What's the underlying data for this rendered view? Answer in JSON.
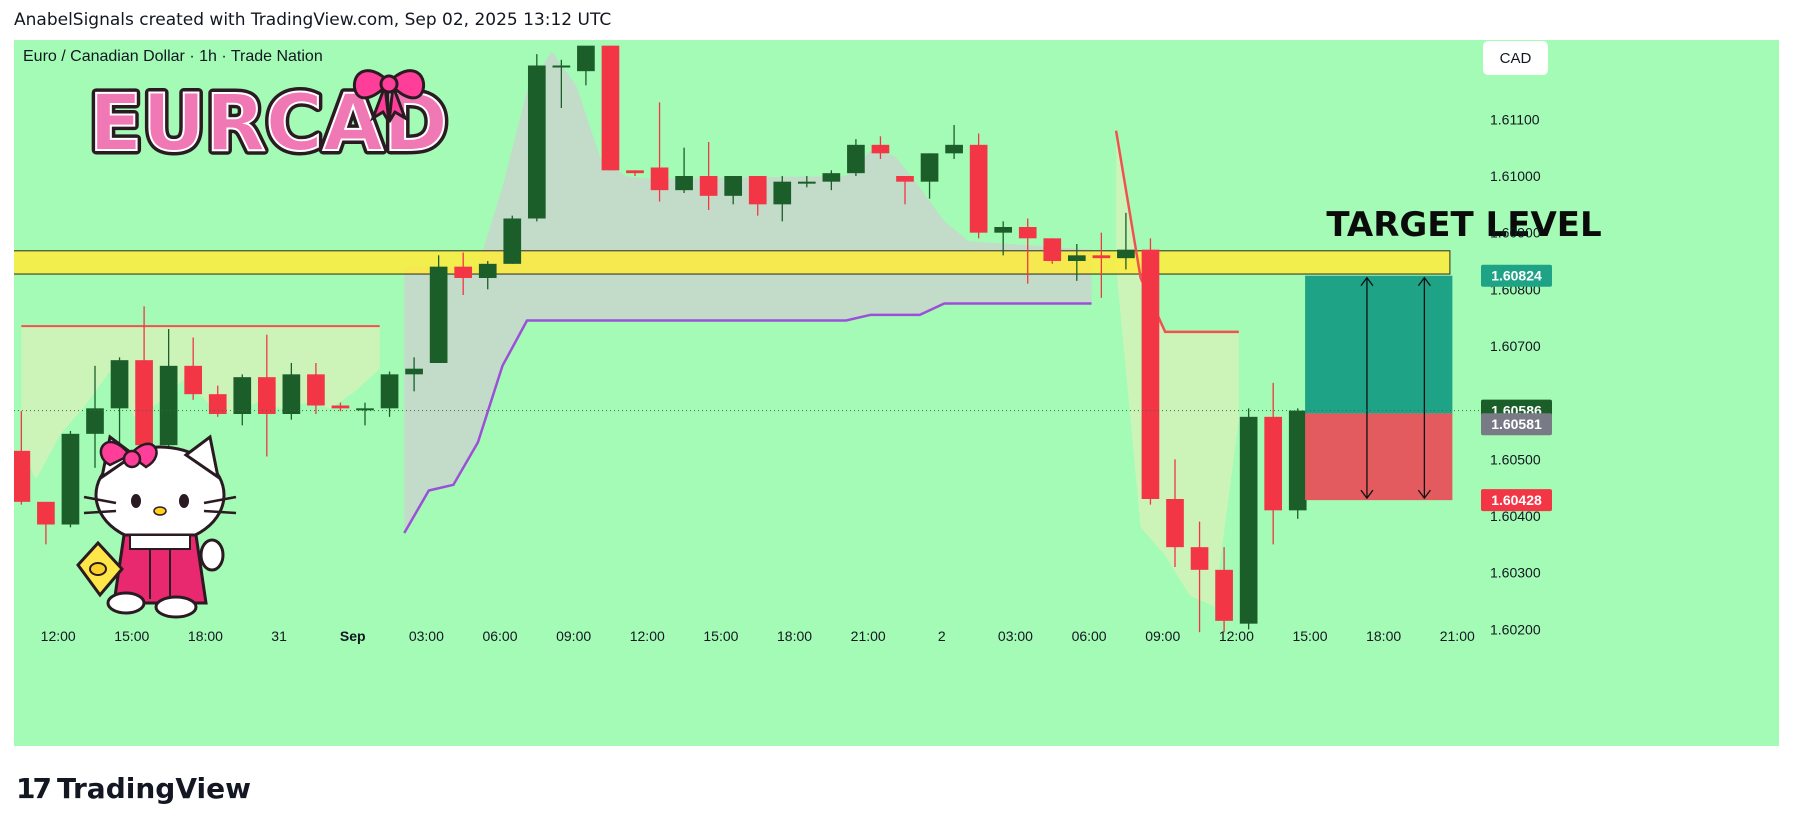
{
  "header": {
    "caption": "AnabelSignals created with TradingView.com, Sep 02, 2025 13:12 UTC"
  },
  "footer": {
    "brand": "TradingView",
    "logo_mark": "17"
  },
  "chart_data": {
    "type": "candlestick",
    "symbol_line": "Euro / Canadian Dollar · 1h · Trade Nation",
    "logo_text": "EURCAD",
    "currency_button": "CAD",
    "target_label": "TARGET LEVEL",
    "colors": {
      "background": "#a3fbb5",
      "up": "#1b5e2a",
      "down": "#f23645",
      "zone": "#ffeb3b",
      "cloud_line": "#9c4fd9",
      "resistance_line": "#ef5350",
      "target_box": "#1fa386",
      "stop_box": "#e35b5e",
      "cloud_fill": "#c8d6cc",
      "resistance_fill": "#d4f2ba"
    },
    "y_axis": {
      "min": 1.6016,
      "max": 1.6124,
      "ticks": [
        "1.60200",
        "1.60300",
        "1.60400",
        "1.60500",
        "1.60700",
        "1.60800",
        "1.60900",
        "1.61000",
        "1.61100"
      ]
    },
    "x_axis": {
      "labels": [
        "12:00",
        "15:00",
        "18:00",
        "31",
        "Sep",
        "03:00",
        "06:00",
        "09:00",
        "12:00",
        "15:00",
        "18:00",
        "21:00",
        "2",
        "03:00",
        "06:00",
        "09:00",
        "12:00",
        "15:00",
        "18:00",
        "21:00"
      ],
      "label_index": [
        1.5,
        4.5,
        7.5,
        10.5,
        13.5,
        16.5,
        19.5,
        22.5,
        25.5,
        28.5,
        31.5,
        34.5,
        37.5,
        40.5,
        43.5,
        46.5,
        49.5,
        52.5,
        55.5,
        58.5
      ],
      "bold": [
        "Sep"
      ],
      "index_range": [
        -0.3,
        59.1
      ]
    },
    "price_tags": [
      {
        "label": "1.60824",
        "value": 1.60824,
        "color": "#1fa386"
      },
      {
        "label": "1.60586",
        "value": 1.60586,
        "color": "#1b5e2a"
      },
      {
        "label": "1.60581",
        "value": 1.60562,
        "color": "#787b86"
      },
      {
        "label": "1.60428",
        "value": 1.60428,
        "color": "#f23645"
      }
    ],
    "current_price": 1.60586,
    "zone": {
      "from": 1.60827,
      "to": 1.60868,
      "start_index": 0.5,
      "end_index": 58.2
    },
    "target_level_line": 1.60827,
    "position": {
      "start_index": 52.3,
      "end_index": 58.3,
      "entry": 1.60581,
      "target": 1.60824,
      "stop": 1.60428
    },
    "candles": [
      [
        1.60515,
        1.60585,
        1.6042,
        1.60425
      ],
      [
        1.60425,
        1.60425,
        1.6035,
        1.60385
      ],
      [
        1.60385,
        1.6055,
        1.6038,
        1.60545
      ],
      [
        1.60545,
        1.60665,
        1.60485,
        1.6059
      ],
      [
        1.6059,
        1.6068,
        1.6049,
        1.60675
      ],
      [
        1.60675,
        1.6077,
        1.6052,
        1.60525
      ],
      [
        1.60525,
        1.6073,
        1.6052,
        1.60665
      ],
      [
        1.60665,
        1.60715,
        1.60605,
        1.60615
      ],
      [
        1.60615,
        1.6063,
        1.60575,
        1.6058
      ],
      [
        1.6058,
        1.6065,
        1.6056,
        1.60645
      ],
      [
        1.60645,
        1.6072,
        1.60505,
        1.6058
      ],
      [
        1.6058,
        1.6067,
        1.6057,
        1.6065
      ],
      [
        1.6065,
        1.6067,
        1.6058,
        1.60595
      ],
      [
        1.60595,
        1.606,
        1.60585,
        1.6059
      ],
      [
        1.6059,
        1.606,
        1.6056,
        1.6059
      ],
      [
        1.6059,
        1.60655,
        1.60575,
        1.6065
      ],
      [
        1.6065,
        1.6068,
        1.6062,
        1.6066
      ],
      [
        1.6067,
        1.6086,
        1.6067,
        1.6084
      ],
      [
        1.6084,
        1.60865,
        1.6079,
        1.6082
      ],
      [
        1.6082,
        1.6085,
        1.608,
        1.60845
      ],
      [
        1.60845,
        1.6093,
        1.60845,
        1.60925
      ],
      [
        1.60925,
        1.61215,
        1.6092,
        1.61195
      ],
      [
        1.61195,
        1.61205,
        1.6112,
        1.61195
      ],
      [
        1.61185,
        1.61225,
        1.6116,
        1.6123
      ],
      [
        1.6123,
        1.6123,
        1.6101,
        1.6101
      ],
      [
        1.6101,
        1.6101,
        1.61,
        1.61005
      ],
      [
        1.61015,
        1.6113,
        1.60955,
        1.60975
      ],
      [
        1.60975,
        1.6105,
        1.6097,
        1.61
      ],
      [
        1.61,
        1.6106,
        1.6094,
        1.60965
      ],
      [
        1.60965,
        1.61,
        1.6095,
        1.61
      ],
      [
        1.61,
        1.61,
        1.6093,
        1.6095
      ],
      [
        1.6095,
        1.61,
        1.6092,
        1.6099
      ],
      [
        1.6099,
        1.61,
        1.6098,
        1.6099
      ],
      [
        1.6099,
        1.6101,
        1.60975,
        1.61005
      ],
      [
        1.61005,
        1.61065,
        1.61,
        1.61055
      ],
      [
        1.61055,
        1.6107,
        1.6103,
        1.6104
      ],
      [
        1.61,
        1.61,
        1.6095,
        1.6099
      ],
      [
        1.6099,
        1.6104,
        1.6096,
        1.6104
      ],
      [
        1.6104,
        1.6109,
        1.6103,
        1.61055
      ],
      [
        1.61055,
        1.61075,
        1.6089,
        1.609
      ],
      [
        1.609,
        1.6092,
        1.6086,
        1.6091
      ],
      [
        1.6091,
        1.60925,
        1.6081,
        1.6089
      ],
      [
        1.6089,
        1.6089,
        1.60845,
        1.6085
      ],
      [
        1.6085,
        1.6088,
        1.60815,
        1.6086
      ],
      [
        1.6086,
        1.609,
        1.60785,
        1.60855
      ],
      [
        1.60855,
        1.60935,
        1.60835,
        1.6087
      ],
      [
        1.6087,
        1.6089,
        1.6042,
        1.6043
      ],
      [
        1.6043,
        1.605,
        1.6031,
        1.60345
      ],
      [
        1.60345,
        1.6039,
        1.60195,
        1.60305
      ],
      [
        1.60305,
        1.60345,
        1.60195,
        1.60215
      ],
      [
        1.6021,
        1.6059,
        1.602,
        1.60575
      ],
      [
        1.60575,
        1.60635,
        1.6035,
        1.6041
      ],
      [
        1.6041,
        1.6059,
        1.60395,
        1.60586
      ]
    ],
    "cloud_line": [
      [
        15.6,
        1.6037
      ],
      [
        16.6,
        1.60445
      ],
      [
        17.6,
        1.60455
      ],
      [
        18.6,
        1.6053
      ],
      [
        19.6,
        1.60665
      ],
      [
        20.6,
        1.60745
      ],
      [
        25.6,
        1.60745
      ],
      [
        33.6,
        1.60745
      ],
      [
        34.6,
        1.60755
      ],
      [
        36.6,
        1.60755
      ],
      [
        37.6,
        1.60775
      ],
      [
        43.6,
        1.60775
      ]
    ],
    "cloud_top": [
      [
        15.6,
        1.6084
      ],
      [
        18.6,
        1.6084
      ],
      [
        19.6,
        1.6098
      ],
      [
        20.6,
        1.6115
      ],
      [
        21.6,
        1.6122
      ],
      [
        22.6,
        1.6116
      ],
      [
        23.6,
        1.6103
      ],
      [
        24.6,
        1.61
      ],
      [
        25.6,
        1.60995
      ],
      [
        33.6,
        1.61
      ],
      [
        34.6,
        1.61045
      ],
      [
        35.6,
        1.61035
      ],
      [
        36.6,
        1.6098
      ],
      [
        37.6,
        1.6092
      ],
      [
        38.6,
        1.60885
      ],
      [
        43.6,
        1.6087
      ]
    ],
    "resistance_line": [
      [
        0,
        1.60735
      ],
      [
        14.6,
        1.60735
      ]
    ],
    "resistance_fill_bottom": [
      [
        0,
        1.60515
      ],
      [
        0.6,
        1.60465
      ],
      [
        1.6,
        1.60545
      ],
      [
        2.6,
        1.60595
      ],
      [
        3.6,
        1.60655
      ],
      [
        4.6,
        1.60575
      ],
      [
        5.6,
        1.606
      ],
      [
        6.6,
        1.6064
      ],
      [
        7.6,
        1.606
      ],
      [
        8.6,
        1.6058
      ],
      [
        9.6,
        1.606
      ],
      [
        10.6,
        1.6059
      ],
      [
        11.6,
        1.606
      ],
      [
        12.6,
        1.6059
      ],
      [
        13.6,
        1.6062
      ],
      [
        14.6,
        1.6066
      ]
    ],
    "right_line": [
      [
        44.6,
        1.6108
      ],
      [
        45.6,
        1.6082
      ],
      [
        46.6,
        1.60725
      ],
      [
        49.6,
        1.60725
      ]
    ],
    "right_fill_bottom": [
      [
        44.6,
        1.6084
      ],
      [
        45.6,
        1.6038
      ],
      [
        46.6,
        1.6033
      ],
      [
        47.6,
        1.6026
      ],
      [
        48.6,
        1.6024
      ],
      [
        49.6,
        1.6057
      ]
    ]
  }
}
